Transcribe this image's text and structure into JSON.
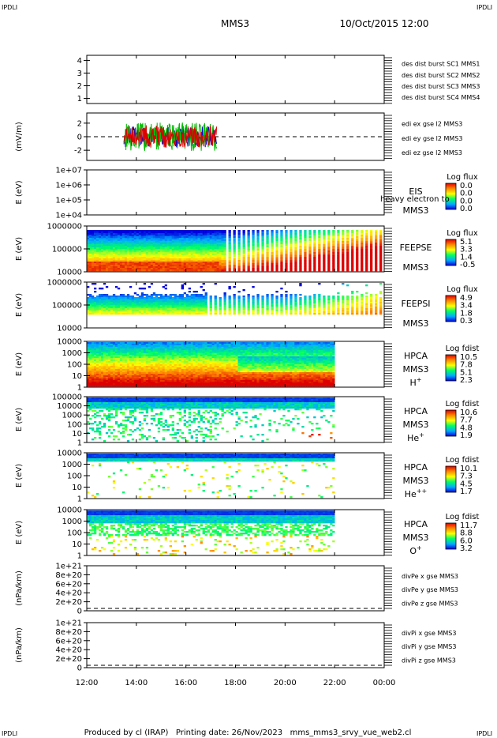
{
  "header": {
    "corner_tl": "IPDLI",
    "corner_tr": "IPDLI",
    "corner_bl": "IPDLI",
    "corner_br": "IPDLI",
    "spacecraft": "MMS3",
    "date": "10/Oct/2015 12:00"
  },
  "footer": {
    "text": "Produced by cl (IRAP)   Printing date: 26/Nov/2023   mms_mms3_srvy_vue_web2.cl"
  },
  "colors": {
    "blue": "#0000cc",
    "magenta": "#dd00dd",
    "red": "#dd0000",
    "green": "#00bb00"
  },
  "chart_data": [
    {
      "type": "line",
      "name": "burst-intervals",
      "yticks": [
        "1",
        "2",
        "3",
        "4"
      ],
      "ylim": [
        0.6,
        4.4
      ],
      "legend": [
        {
          "label": "des dist burst SC1 MMS1",
          "color": "#0000cc"
        },
        {
          "label": "des dist burst SC2 MMS2",
          "color": "#dd00dd"
        },
        {
          "label": "des dist burst SC3 MMS3",
          "color": "#dd0000"
        },
        {
          "label": "des dist burst SC4 MMS4",
          "color": "#00bb00"
        }
      ],
      "series": []
    },
    {
      "type": "line",
      "name": "edi-electric-field",
      "ylabel": "(mV/m)",
      "yticks": [
        "-2",
        "0",
        "2"
      ],
      "ylim": [
        -3.5,
        3.5
      ],
      "data_range_hours": [
        13.5,
        17.25
      ],
      "legend": [
        {
          "label": "edi ex gse l2 MMS3",
          "color": "#dd0000"
        },
        {
          "label": "edi ey gse l2 MMS3",
          "color": "#00bb00"
        },
        {
          "label": "edi ez gse l2 MMS3",
          "color": "#0000cc"
        }
      ]
    },
    {
      "type": "heatmap",
      "name": "EIS",
      "ylabel": "E (eV)",
      "yticks": [
        "1e+07",
        "1e+06",
        "1e+05",
        "1e+04"
      ],
      "instrument": [
        "EIS",
        "MMS3"
      ],
      "overlay_label": "heavy electron to",
      "colorbar_title": "Log flux",
      "colorbar_ticks": [
        "0.0",
        "0.0",
        "0.0",
        "0.0"
      ]
    },
    {
      "type": "heatmap",
      "name": "FEEPSE",
      "ylabel": "E (eV)",
      "yticks": [
        "1000000",
        "100000",
        "10000"
      ],
      "instrument": [
        "FEEPSE",
        "MMS3"
      ],
      "colorbar_title": "Log flux",
      "colorbar_ticks": [
        "5.1",
        "3.3",
        "1.4",
        "-0.5"
      ],
      "data_range_hours": [
        12.0,
        24.0
      ]
    },
    {
      "type": "heatmap",
      "name": "FEEPSI",
      "ylabel": "E (eV)",
      "yticks": [
        "1000000",
        "100000",
        "10000"
      ],
      "instrument": [
        "FEEPSI",
        "MMS3"
      ],
      "colorbar_title": "Log flux",
      "colorbar_ticks": [
        "4.9",
        "3.4",
        "1.8",
        "0.3"
      ],
      "data_range_hours": [
        12.0,
        24.0
      ]
    },
    {
      "type": "heatmap",
      "name": "HPCA-H",
      "ylabel": "E (eV)",
      "yticks": [
        "10000",
        "1000",
        "100",
        "10",
        "1"
      ],
      "instrument": [
        "HPCA",
        "MMS3",
        "H+"
      ],
      "colorbar_title": "Log fdist",
      "colorbar_ticks": [
        "10.5",
        "7.8",
        "5.1",
        "2.3"
      ],
      "data_range_hours": [
        12.0,
        22.0
      ]
    },
    {
      "type": "heatmap",
      "name": "HPCA-He",
      "ylabel": "E (eV)",
      "yticks": [
        "100000",
        "10000",
        "1000",
        "100",
        "10",
        "1"
      ],
      "instrument": [
        "HPCA",
        "MMS3",
        "He+"
      ],
      "colorbar_title": "Log fdist",
      "colorbar_ticks": [
        "10.6",
        "7.7",
        "4.8",
        "1.9"
      ],
      "data_range_hours": [
        12.0,
        22.0
      ]
    },
    {
      "type": "heatmap",
      "name": "HPCA-He2",
      "ylabel": "E (eV)",
      "yticks": [
        "10000",
        "1000",
        "100",
        "10",
        "1"
      ],
      "instrument": [
        "HPCA",
        "MMS3",
        "He++"
      ],
      "colorbar_title": "Log fdist",
      "colorbar_ticks": [
        "10.1",
        "7.3",
        "4.5",
        "1.7"
      ],
      "data_range_hours": [
        12.0,
        22.0
      ]
    },
    {
      "type": "heatmap",
      "name": "HPCA-O",
      "ylabel": "E (eV)",
      "yticks": [
        "10000",
        "1000",
        "100",
        "10",
        "1"
      ],
      "instrument": [
        "HPCA",
        "MMS3",
        "O+"
      ],
      "colorbar_title": "Log fdist",
      "colorbar_ticks": [
        "11.7",
        "8.8",
        "6.0",
        "3.2"
      ],
      "data_range_hours": [
        12.0,
        22.0
      ]
    },
    {
      "type": "line",
      "name": "divPe",
      "ylabel": "(nPa/km)",
      "yticks": [
        "1e+21",
        "8e+20",
        "6e+20",
        "4e+20",
        "2e+20",
        "0"
      ],
      "ylim": [
        0,
        1e+21
      ],
      "legend": [
        {
          "label": "divPe x gse MMS3",
          "color": "#dd0000"
        },
        {
          "label": "divPe y gse MMS3",
          "color": "#00bb00"
        },
        {
          "label": "divPe z gse MMS3",
          "color": "#0000cc"
        }
      ]
    },
    {
      "type": "line",
      "name": "divPi",
      "ylabel": "(nPa/km)",
      "yticks": [
        "1e+21",
        "8e+20",
        "6e+20",
        "4e+20",
        "2e+20",
        "0"
      ],
      "ylim": [
        0,
        1e+21
      ],
      "legend": [
        {
          "label": "divPi x gse MMS3",
          "color": "#dd0000"
        },
        {
          "label": "divPi y gse MMS3",
          "color": "#00bb00"
        },
        {
          "label": "divPi z gse MMS3",
          "color": "#0000cc"
        }
      ]
    }
  ],
  "x_axis": {
    "ticks": [
      "12:00",
      "14:00",
      "16:00",
      "18:00",
      "20:00",
      "22:00",
      "00:00"
    ],
    "range_hours": [
      12,
      24
    ]
  }
}
